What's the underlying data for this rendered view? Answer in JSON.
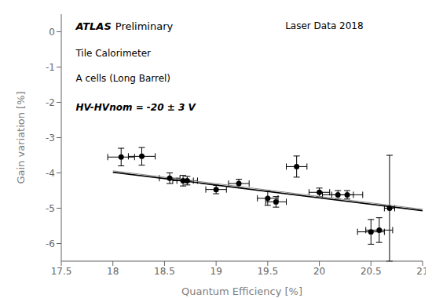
{
  "chart_data": {
    "type": "scatter",
    "xlabel": "Quantum Efficiency [%]",
    "ylabel": "Gain variation [%]",
    "xlim": [
      17.5,
      21.0
    ],
    "ylim": [
      -6.5,
      0.5
    ],
    "xticks": [
      17.5,
      18,
      18.5,
      19,
      19.5,
      20,
      20.5,
      21
    ],
    "yticks": [
      0,
      -1,
      -2,
      -3,
      -4,
      -5,
      -6
    ],
    "grid": false,
    "annotations": [
      "ATLAS",
      "Preliminary",
      "Laser Data 2018",
      "Tile Calorimeter",
      "A cells (Long Barrel)",
      "HV-HVnom = -20 ± 3 V"
    ],
    "series": [
      {
        "type": "line",
        "color": "black",
        "x": [
          18.0,
          21.0
        ],
        "values": [
          -3.98,
          -5.07
        ]
      },
      {
        "type": "line",
        "color": "#888888",
        "x": [
          18.0,
          21.0
        ],
        "values": [
          -3.94,
          -5.03
        ]
      },
      {
        "type": "scatter",
        "color": "black",
        "x": [
          18.08,
          18.28,
          18.55,
          18.68,
          18.72,
          19.0,
          19.22,
          19.5,
          19.58,
          19.78,
          20.0,
          20.18,
          20.27,
          20.5,
          20.58,
          20.68
        ],
        "values": [
          -3.55,
          -3.53,
          -4.15,
          -4.22,
          -4.22,
          -4.47,
          -4.3,
          -4.72,
          -4.82,
          -3.82,
          -4.55,
          -4.62,
          -4.62,
          -5.67,
          -5.62,
          -5.0
        ],
        "x_err": [
          0.13,
          0.13,
          0.1,
          0.1,
          0.1,
          0.1,
          0.1,
          0.1,
          0.1,
          0.1,
          0.1,
          0.15,
          0.15,
          0.13,
          0.13,
          0.05
        ],
        "y_err": [
          0.25,
          0.25,
          0.15,
          0.15,
          0.12,
          0.12,
          0.12,
          0.2,
          0.15,
          0.3,
          0.12,
          0.12,
          0.12,
          0.35,
          0.35,
          1.5
        ]
      }
    ]
  }
}
